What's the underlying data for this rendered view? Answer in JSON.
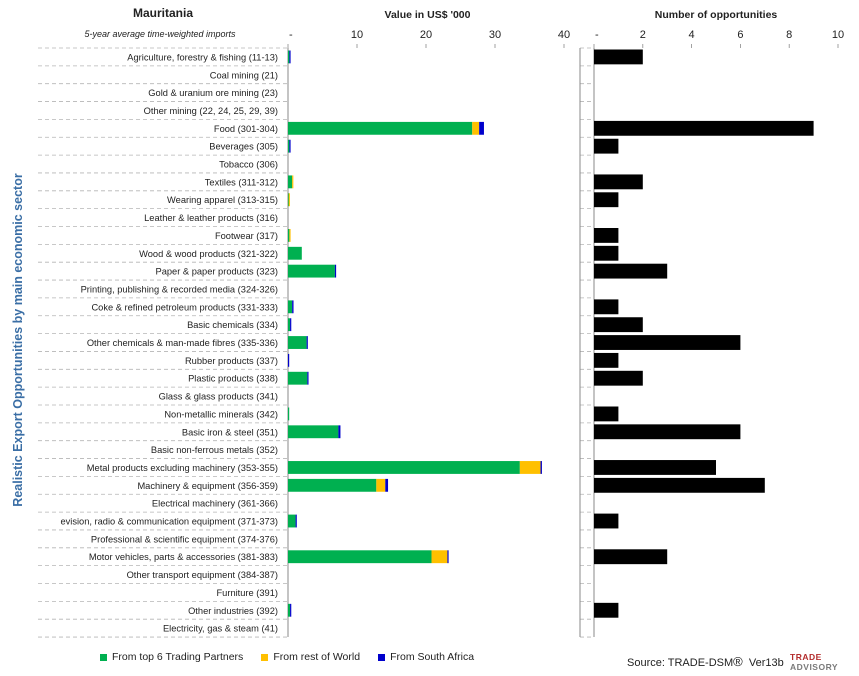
{
  "header": {
    "country": "Mauritania",
    "subtitle": "5-year average time-weighted imports",
    "value_title": "Value in US$ '000",
    "count_title": "Number of opportunities",
    "y_axis_label": "Realistic Export Opportunities by main economic sector"
  },
  "legend": [
    {
      "label": "From top 6 Trading Partners",
      "color": "#00b050"
    },
    {
      "label": "From rest of World",
      "color": "#ffc000"
    },
    {
      "label": "From South Africa",
      "color": "#0000cc"
    }
  ],
  "footer": {
    "source_prefix": "Source: TRADE-DSM",
    "reg_mark": "®",
    "version": "Ver13b",
    "logo_line1": "TRADE",
    "logo_line2": "ADVISORY"
  },
  "chart_data": [
    {
      "type": "bar",
      "orientation": "horizontal",
      "stacked": true,
      "title": "Value in US$ '000",
      "xlim": [
        0,
        40
      ],
      "xticks": [
        "-",
        "10",
        "20",
        "30",
        "40"
      ],
      "grid": false,
      "categories": [
        "Agriculture, forestry & fishing (11-13)",
        "Coal mining (21)",
        "Gold & uranium ore mining (23)",
        "Other mining (22, 24, 25, 29, 39)",
        "Food (301-304)",
        "Beverages (305)",
        "Tobacco (306)",
        "Textiles (311-312)",
        "Wearing apparel (313-315)",
        "Leather & leather products (316)",
        "Footwear (317)",
        "Wood & wood products (321-322)",
        "Paper & paper products (323)",
        "Printing, publishing & recorded media (324-326)",
        "Coke & refined petroleum products (331-333)",
        "Basic chemicals (334)",
        "Other chemicals & man-made fibres (335-336)",
        "Rubber products (337)",
        "Plastic products (338)",
        "Glass & glass products (341)",
        "Non-metallic minerals (342)",
        "Basic iron & steel (351)",
        "Basic non-ferrous metals (352)",
        "Metal products excluding machinery (353-355)",
        "Machinery & equipment (356-359)",
        "Electrical machinery (361-366)",
        "evision, radio & communication equipment (371-373)",
        "Professional & scientific equipment (374-376)",
        "Motor vehicles, parts & accessories (381-383)",
        "Other transport equipment (384-387)",
        "Furniture (391)",
        "Other industries (392)",
        "Electricity, gas & steam (41)"
      ],
      "series": [
        {
          "name": "From top 6 Trading Partners",
          "color": "#00b050",
          "values": [
            0.2,
            0,
            0,
            0,
            26.7,
            0.2,
            0,
            0.6,
            0.1,
            0,
            0.2,
            2.0,
            6.8,
            0,
            0.6,
            0.3,
            2.7,
            0,
            2.8,
            0,
            0.1,
            7.3,
            0,
            33.6,
            12.8,
            0,
            1.1,
            0,
            20.8,
            0,
            0,
            0.3,
            0
          ]
        },
        {
          "name": "From rest of World",
          "color": "#ffc000",
          "values": [
            0,
            0,
            0,
            0,
            1.0,
            0,
            0,
            0.1,
            0.05,
            0,
            0.1,
            0,
            0,
            0,
            0,
            0,
            0,
            0,
            0,
            0,
            0,
            0,
            0,
            3.0,
            1.3,
            0,
            0,
            0,
            2.3,
            0,
            0,
            0,
            0
          ]
        },
        {
          "name": "From South Africa",
          "color": "#0000cc",
          "values": [
            0.1,
            0,
            0,
            0,
            0.7,
            0.1,
            0,
            0,
            0,
            0,
            0,
            0,
            0.15,
            0,
            0.2,
            0.15,
            0.15,
            0.1,
            0.15,
            0,
            0,
            0.3,
            0,
            0.2,
            0.4,
            0,
            0.1,
            0,
            0.15,
            0,
            0,
            0.1,
            0
          ]
        }
      ]
    },
    {
      "type": "bar",
      "orientation": "horizontal",
      "title": "Number of opportunities",
      "xlim": [
        0,
        10
      ],
      "xticks": [
        "-",
        "2",
        "4",
        "6",
        "8",
        "10"
      ],
      "grid": false,
      "series": [
        {
          "color": "#000000",
          "values": [
            2,
            0,
            0,
            0,
            9,
            1,
            0,
            2,
            1,
            0,
            1,
            1,
            3,
            0,
            1,
            2,
            6,
            1,
            2,
            0,
            1,
            6,
            0,
            5,
            7,
            0,
            1,
            0,
            3,
            0,
            0,
            1,
            0
          ]
        }
      ]
    }
  ]
}
